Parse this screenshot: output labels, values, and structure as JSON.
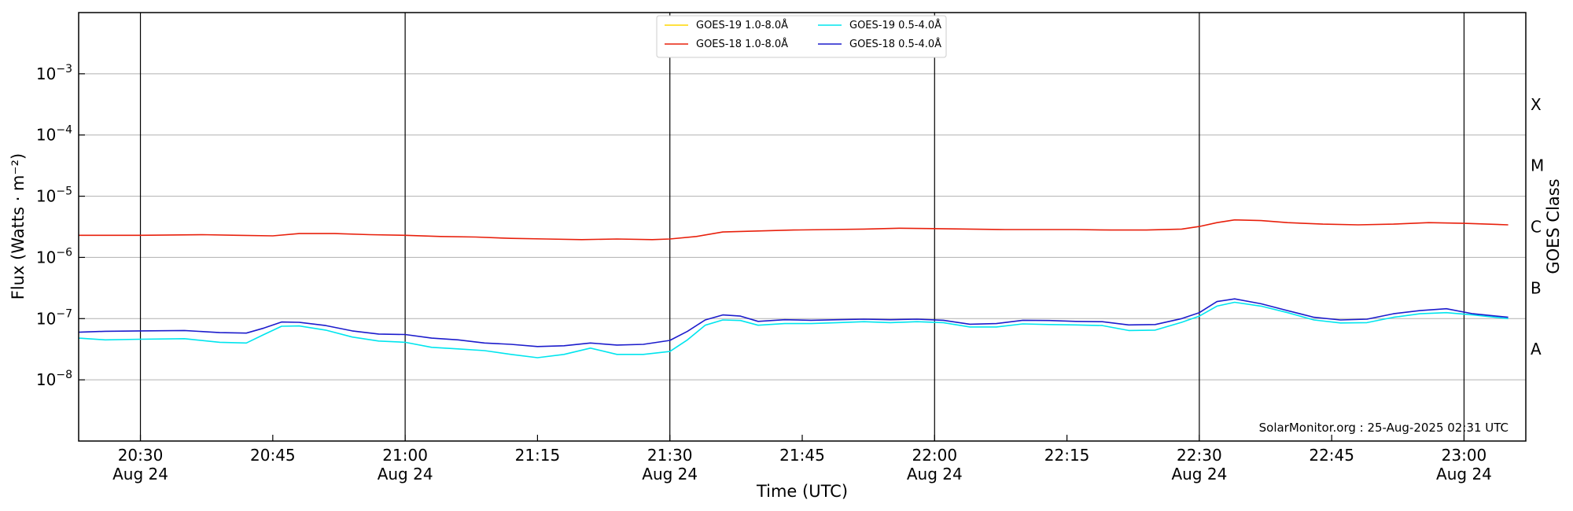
{
  "chart_data": {
    "type": "line",
    "title": "",
    "xlabel": "Time (UTC)",
    "ylabel": "Flux (Watts · m⁻²)",
    "ylabel_right": "GOES Class",
    "y_scale": "log",
    "ylim": [
      1e-09,
      0.01
    ],
    "xlim": [
      "2025-08-24 20:23",
      "2025-08-24 23:07"
    ],
    "grid": "horizontal",
    "legend_position": "top-center",
    "credit": "SolarMonitor.org : 25-Aug-2025 02:31 UTC",
    "x_ticks": [
      {
        "time": "20:30",
        "label": "20:30",
        "sublabel": "Aug 24"
      },
      {
        "time": "20:45",
        "label": "20:45",
        "sublabel": ""
      },
      {
        "time": "21:00",
        "label": "21:00",
        "sublabel": "Aug 24"
      },
      {
        "time": "21:15",
        "label": "21:15",
        "sublabel": ""
      },
      {
        "time": "21:30",
        "label": "21:30",
        "sublabel": "Aug 24"
      },
      {
        "time": "21:45",
        "label": "21:45",
        "sublabel": ""
      },
      {
        "time": "22:00",
        "label": "22:00",
        "sublabel": "Aug 24"
      },
      {
        "time": "22:15",
        "label": "22:15",
        "sublabel": ""
      },
      {
        "time": "22:30",
        "label": "22:30",
        "sublabel": "Aug 24"
      },
      {
        "time": "22:45",
        "label": "22:45",
        "sublabel": ""
      },
      {
        "time": "23:00",
        "label": "23:00",
        "sublabel": "Aug 24"
      }
    ],
    "vertical_lines": [
      "20:30",
      "21:00",
      "21:30",
      "22:00",
      "22:30",
      "23:00"
    ],
    "y_ticks": [
      {
        "value": 1e-08,
        "base": "10",
        "exp": "−8"
      },
      {
        "value": 1e-07,
        "base": "10",
        "exp": "−7"
      },
      {
        "value": 1e-06,
        "base": "10",
        "exp": "−6"
      },
      {
        "value": 1e-05,
        "base": "10",
        "exp": "−5"
      },
      {
        "value": 0.0001,
        "base": "10",
        "exp": "−4"
      },
      {
        "value": 0.001,
        "base": "10",
        "exp": "−3"
      }
    ],
    "goes_classes": [
      {
        "label": "A",
        "value": 3.16e-08
      },
      {
        "label": "B",
        "value": 3.16e-07
      },
      {
        "label": "C",
        "value": 3.16e-06
      },
      {
        "label": "M",
        "value": 3.16e-05
      },
      {
        "label": "X",
        "value": 0.000316
      }
    ],
    "series": [
      {
        "name": "GOES-19 1.0-8.0Å",
        "color": "#ffd700",
        "visible_data": false,
        "x": [],
        "y": []
      },
      {
        "name": "GOES-18 1.0-8.0Å",
        "color": "#e8200c",
        "x": [
          "20:23",
          "20:30",
          "20:37",
          "20:41",
          "20:45",
          "20:48",
          "20:52",
          "20:56",
          "21:00",
          "21:04",
          "21:08",
          "21:12",
          "21:16",
          "21:20",
          "21:24",
          "21:28",
          "21:30",
          "21:33",
          "21:36",
          "21:40",
          "21:44",
          "21:48",
          "21:52",
          "21:56",
          "22:00",
          "22:04",
          "22:08",
          "22:12",
          "22:16",
          "22:20",
          "22:24",
          "22:28",
          "22:30",
          "22:32",
          "22:34",
          "22:37",
          "22:40",
          "22:44",
          "22:48",
          "22:52",
          "22:56",
          "23:00",
          "23:05"
        ],
        "y": [
          2.3e-06,
          2.3e-06,
          2.35e-06,
          2.3e-06,
          2.25e-06,
          2.45e-06,
          2.45e-06,
          2.35e-06,
          2.3e-06,
          2.2e-06,
          2.15e-06,
          2.05e-06,
          2e-06,
          1.95e-06,
          2e-06,
          1.95e-06,
          2e-06,
          2.2e-06,
          2.6e-06,
          2.7e-06,
          2.8e-06,
          2.85e-06,
          2.9e-06,
          3e-06,
          2.95e-06,
          2.9e-06,
          2.85e-06,
          2.85e-06,
          2.85e-06,
          2.8e-06,
          2.8e-06,
          2.9e-06,
          3.2e-06,
          3.7e-06,
          4.1e-06,
          4e-06,
          3.7e-06,
          3.5e-06,
          3.4e-06,
          3.5e-06,
          3.7e-06,
          3.6e-06,
          3.4e-06
        ]
      },
      {
        "name": "GOES-19 0.5-4.0Å",
        "color": "#00e5ee",
        "x": [
          "20:23",
          "20:26",
          "20:30",
          "20:35",
          "20:39",
          "20:42",
          "20:44",
          "20:46",
          "20:48",
          "20:51",
          "20:54",
          "20:57",
          "21:00",
          "21:03",
          "21:06",
          "21:09",
          "21:12",
          "21:15",
          "21:18",
          "21:21",
          "21:24",
          "21:27",
          "21:30",
          "21:32",
          "21:34",
          "21:36",
          "21:38",
          "21:40",
          "21:43",
          "21:46",
          "21:49",
          "21:52",
          "21:55",
          "21:58",
          "22:01",
          "22:04",
          "22:07",
          "22:10",
          "22:13",
          "22:16",
          "22:19",
          "22:22",
          "22:25",
          "22:28",
          "22:30",
          "22:32",
          "22:34",
          "22:37",
          "22:40",
          "22:43",
          "22:46",
          "22:49",
          "22:52",
          "22:55",
          "22:58",
          "23:01",
          "23:05"
        ],
        "y": [
          4.8e-08,
          4.5e-08,
          4.6e-08,
          4.7e-08,
          4.1e-08,
          4e-08,
          5.5e-08,
          7.5e-08,
          7.6e-08,
          6.5e-08,
          5e-08,
          4.3e-08,
          4.1e-08,
          3.4e-08,
          3.2e-08,
          3e-08,
          2.6e-08,
          2.3e-08,
          2.6e-08,
          3.3e-08,
          2.6e-08,
          2.6e-08,
          2.9e-08,
          4.5e-08,
          7.8e-08,
          9.5e-08,
          9.3e-08,
          7.8e-08,
          8.3e-08,
          8.3e-08,
          8.6e-08,
          8.9e-08,
          8.6e-08,
          8.9e-08,
          8.6e-08,
          7.3e-08,
          7.3e-08,
          8.2e-08,
          8e-08,
          7.9e-08,
          7.7e-08,
          6.4e-08,
          6.5e-08,
          8.7e-08,
          1.1e-07,
          1.6e-07,
          1.85e-07,
          1.6e-07,
          1.25e-07,
          9.5e-08,
          8.5e-08,
          8.6e-08,
          1.05e-07,
          1.2e-07,
          1.25e-07,
          1.15e-07,
          1e-07
        ]
      },
      {
        "name": "GOES-18 0.5-4.0Å",
        "color": "#1c1ccc",
        "x": [
          "20:23",
          "20:26",
          "20:30",
          "20:35",
          "20:39",
          "20:42",
          "20:44",
          "20:46",
          "20:48",
          "20:51",
          "20:54",
          "20:57",
          "21:00",
          "21:03",
          "21:06",
          "21:09",
          "21:12",
          "21:15",
          "21:18",
          "21:21",
          "21:24",
          "21:27",
          "21:30",
          "21:32",
          "21:34",
          "21:36",
          "21:38",
          "21:40",
          "21:43",
          "21:46",
          "21:49",
          "21:52",
          "21:55",
          "21:58",
          "22:01",
          "22:04",
          "22:07",
          "22:10",
          "22:13",
          "22:16",
          "22:19",
          "22:22",
          "22:25",
          "22:28",
          "22:30",
          "22:32",
          "22:34",
          "22:37",
          "22:40",
          "22:43",
          "22:46",
          "22:49",
          "22:52",
          "22:55",
          "22:58",
          "23:01",
          "23:05"
        ],
        "y": [
          6e-08,
          6.2e-08,
          6.3e-08,
          6.4e-08,
          5.9e-08,
          5.8e-08,
          7e-08,
          8.8e-08,
          8.7e-08,
          7.7e-08,
          6.3e-08,
          5.6e-08,
          5.5e-08,
          4.8e-08,
          4.5e-08,
          4e-08,
          3.8e-08,
          3.5e-08,
          3.6e-08,
          4e-08,
          3.7e-08,
          3.8e-08,
          4.4e-08,
          6.2e-08,
          9.5e-08,
          1.15e-07,
          1.1e-07,
          9e-08,
          9.6e-08,
          9.4e-08,
          9.6e-08,
          9.8e-08,
          9.6e-08,
          9.8e-08,
          9.4e-08,
          8.1e-08,
          8.3e-08,
          9.4e-08,
          9.3e-08,
          9e-08,
          8.9e-08,
          7.9e-08,
          8e-08,
          1e-07,
          1.25e-07,
          1.9e-07,
          2.1e-07,
          1.75e-07,
          1.35e-07,
          1.05e-07,
          9.5e-08,
          9.8e-08,
          1.2e-07,
          1.35e-07,
          1.45e-07,
          1.2e-07,
          1.05e-07
        ]
      }
    ]
  }
}
